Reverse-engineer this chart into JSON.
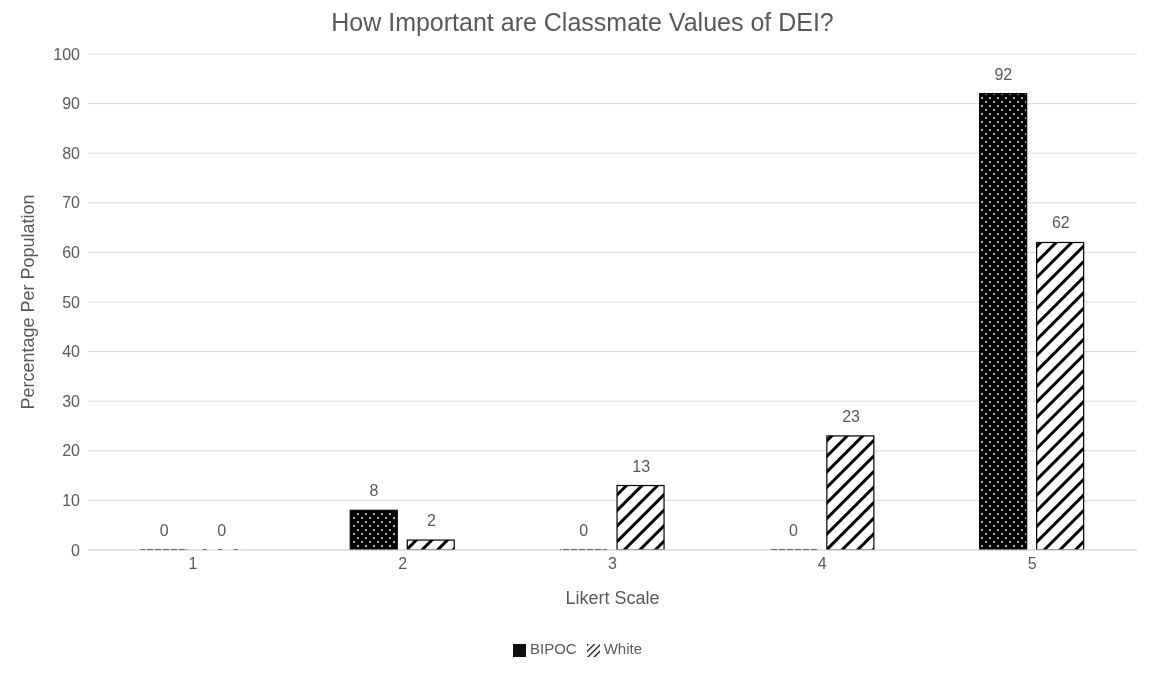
{
  "chart_data": {
    "type": "bar",
    "title": "How Important are Classmate Values of DEI?",
    "xlabel": "Likert Scale",
    "ylabel": "Percentage Per Population",
    "categories": [
      "1",
      "2",
      "3",
      "4",
      "5"
    ],
    "series": [
      {
        "name": "BIPOC",
        "color": "#000000",
        "values": [
          0,
          8,
          0,
          0,
          92
        ]
      },
      {
        "name": "White",
        "color": "#ffffff",
        "values": [
          0,
          2,
          13,
          23,
          62
        ]
      }
    ],
    "ylim": [
      0,
      100
    ],
    "yticks": [
      0,
      10,
      20,
      30,
      40,
      50,
      60,
      70,
      80,
      90,
      100
    ],
    "grid": "y",
    "legend": "bottom",
    "data_labels": true
  }
}
